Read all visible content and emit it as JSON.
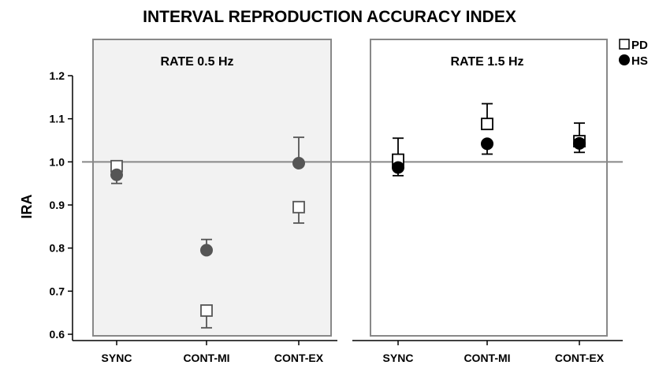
{
  "chart_data": {
    "type": "scatter",
    "title": "INTERVAL REPRODUCTION ACCURACY INDEX",
    "ylabel": "IRA",
    "xlabel": "",
    "ylim": [
      0.6,
      1.2
    ],
    "yticks": [
      "0.6",
      "0.7",
      "0.8",
      "0.9",
      "1.0",
      "1.1",
      "1.2"
    ],
    "reference_line": 1.0,
    "categories": [
      "SYNC",
      "CONT-MI",
      "CONT-EX"
    ],
    "legend": {
      "placement": "top-right",
      "entries": [
        "PD",
        "HS"
      ]
    },
    "panels": [
      {
        "label": "RATE 0.5 Hz",
        "shaded": true,
        "series": [
          {
            "name": "PD",
            "marker": "open-square",
            "color": "#555555",
            "values": [
              0.99,
              0.655,
              0.895
            ],
            "error_upper": [
              0.99,
              0.655,
              0.895
            ],
            "error_lower": [
              0.99,
              0.615,
              0.858
            ]
          },
          {
            "name": "HS",
            "marker": "filled-circle",
            "color": "#555555",
            "values": [
              0.97,
              0.795,
              0.997
            ],
            "error_upper": [
              0.97,
              0.82,
              1.057
            ],
            "error_lower": [
              0.95,
              0.795,
              0.997
            ]
          }
        ]
      },
      {
        "label": "RATE 1.5 Hz",
        "shaded": false,
        "series": [
          {
            "name": "PD",
            "marker": "open-square",
            "color": "#000000",
            "values": [
              1.005,
              1.088,
              1.048
            ],
            "error_upper": [
              1.055,
              1.135,
              1.09
            ],
            "error_lower": [
              1.005,
              1.088,
              1.048
            ]
          },
          {
            "name": "HS",
            "marker": "filled-circle",
            "color": "#000000",
            "values": [
              0.987,
              1.042,
              1.043
            ],
            "error_upper": [
              0.987,
              1.042,
              1.043
            ],
            "error_lower": [
              0.968,
              1.018,
              1.022
            ]
          }
        ]
      }
    ]
  }
}
